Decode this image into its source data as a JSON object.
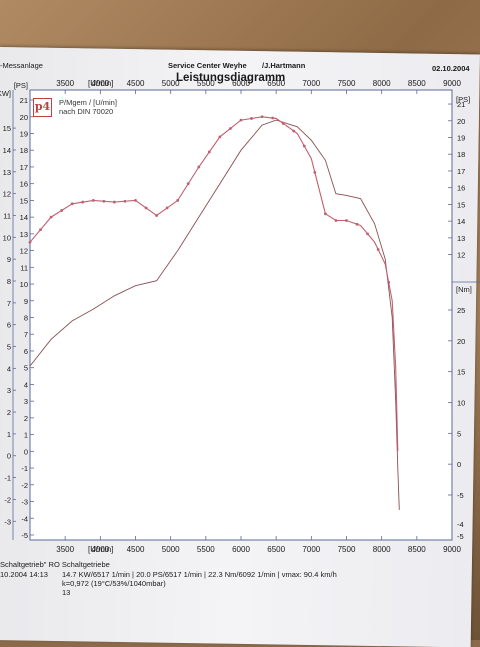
{
  "header": {
    "left": "-Messanlage",
    "center": "Service Center Weyhe",
    "author": "/J.Hartmann",
    "date": "02.10.2004",
    "title": "Leistungsdiagramm"
  },
  "info": {
    "logo": "p4",
    "line1": "P/Mgem / [U/min]",
    "line2": "nach DIN 70020"
  },
  "chart_data": {
    "type": "line",
    "title": "Leistungsdiagramm",
    "x_unit": "[U/min]",
    "xlim": [
      3000,
      9000
    ],
    "x_ticks": [
      3500,
      4000,
      4500,
      5000,
      5500,
      6000,
      6500,
      7000,
      7500,
      8000,
      8500,
      9000
    ],
    "left_axis": {
      "unit": "[PS]",
      "ticks": [
        -5,
        -4,
        -3,
        -2,
        -1,
        0,
        1,
        2,
        3,
        4,
        5,
        6,
        7,
        8,
        9,
        10,
        11,
        12,
        13,
        14,
        15,
        16,
        17,
        18,
        19,
        20,
        21
      ]
    },
    "left_outer_axis": {
      "unit": "[KW]",
      "ticks": [
        -3,
        -2,
        -1,
        0,
        1,
        2,
        3,
        4,
        5,
        6,
        7,
        8,
        9,
        10,
        11,
        12,
        13,
        14,
        15
      ]
    },
    "right_axis": {
      "unit": "[PS]",
      "ticks": [
        12,
        13,
        14,
        15,
        16,
        17,
        18,
        19,
        20,
        21
      ]
    },
    "right_torque_axis": {
      "unit": "[Nm]",
      "ticks": [
        -5,
        0,
        5,
        10,
        15,
        20,
        25
      ]
    },
    "right_lower_ticks": [
      -4,
      -5
    ],
    "series": [
      {
        "name": "P",
        "color": "#8a5050",
        "x": [
          3000,
          3300,
          3600,
          3900,
          4200,
          4500,
          4800,
          5100,
          5400,
          5700,
          6000,
          6300,
          6500,
          6800,
          7000,
          7200,
          7350,
          7500,
          7700,
          7900,
          8050,
          8150,
          8200,
          8230,
          8250
        ],
        "y": [
          5.1,
          6.7,
          7.8,
          8.5,
          9.3,
          9.9,
          10.2,
          12.0,
          14.0,
          16.0,
          18.0,
          19.5,
          19.8,
          19.4,
          18.6,
          17.4,
          15.4,
          15.3,
          15.1,
          13.6,
          11.5,
          8.0,
          3.0,
          -1.0,
          -3.5
        ]
      },
      {
        "name": "M",
        "color": "#c06070",
        "marker": "dot",
        "x": [
          3000,
          3300,
          3600,
          3900,
          4200,
          4500,
          4800,
          5100,
          5400,
          5700,
          6000,
          6300,
          6500,
          6800,
          7000,
          7200,
          7350,
          7500,
          7700,
          7900,
          8050,
          8150,
          8200,
          8230
        ],
        "y": [
          12.5,
          14.0,
          14.8,
          15.0,
          14.9,
          15.0,
          14.1,
          15.0,
          17.0,
          18.8,
          19.8,
          20.0,
          19.9,
          19.0,
          17.5,
          14.2,
          13.8,
          13.8,
          13.5,
          12.5,
          11.2,
          9.0,
          5.0,
          0.0
        ]
      }
    ]
  },
  "footer": {
    "line0": "Schaltgetrieb\"  RO Schaltgetriebe",
    "line1_date": "10.2004  14:13",
    "line1_values": "14.7 KW/6517 1/min  |  20.0 PS/6517 1/min  |  22.3 Nm/6092 1/min  |  vmax: 90.4 km/h",
    "line2": "k=0,972 (19°C/53%/1040mbar)",
    "line3": "13"
  }
}
